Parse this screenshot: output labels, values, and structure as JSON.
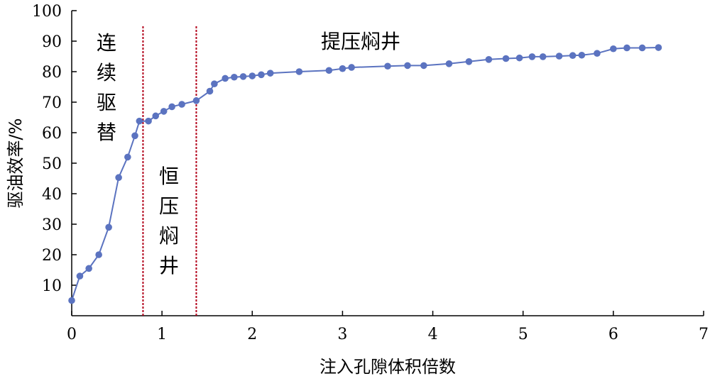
{
  "chart_data": {
    "type": "line",
    "xlabel": "注入孔隙体积倍数",
    "ylabel": "驱油效率/%",
    "xlim": [
      0,
      7
    ],
    "ylim": [
      0,
      100
    ],
    "x_ticks": [
      "0",
      "1",
      "2",
      "3",
      "4",
      "5",
      "6",
      "7"
    ],
    "y_ticks": [
      "10",
      "20",
      "30",
      "40",
      "50",
      "60",
      "70",
      "80",
      "90",
      "100"
    ],
    "grid": false,
    "colors": {
      "series": "#5B73C0",
      "divider": "#B3001B"
    },
    "series": [
      {
        "marker": "circle",
        "points": [
          [
            0.0,
            5.0
          ],
          [
            0.09,
            13.0
          ],
          [
            0.19,
            15.5
          ],
          [
            0.3,
            20.0
          ],
          [
            0.41,
            29.0
          ],
          [
            0.52,
            45.3
          ],
          [
            0.62,
            52.0
          ],
          [
            0.7,
            59.0
          ],
          [
            0.75,
            63.8
          ],
          [
            0.85,
            63.8
          ],
          [
            0.93,
            65.5
          ],
          [
            1.02,
            67.0
          ],
          [
            1.11,
            68.5
          ],
          [
            1.22,
            69.3
          ],
          [
            1.38,
            70.5
          ],
          [
            1.53,
            73.6
          ],
          [
            1.58,
            76.0
          ],
          [
            1.7,
            77.8
          ],
          [
            1.8,
            78.2
          ],
          [
            1.9,
            78.4
          ],
          [
            2.0,
            78.6
          ],
          [
            2.1,
            79.0
          ],
          [
            2.2,
            79.5
          ],
          [
            2.52,
            80.0
          ],
          [
            2.85,
            80.4
          ],
          [
            3.0,
            81.0
          ],
          [
            3.1,
            81.4
          ],
          [
            3.5,
            81.8
          ],
          [
            3.72,
            82.0
          ],
          [
            3.9,
            82.0
          ],
          [
            4.18,
            82.6
          ],
          [
            4.4,
            83.3
          ],
          [
            4.62,
            84.0
          ],
          [
            4.81,
            84.3
          ],
          [
            4.96,
            84.5
          ],
          [
            5.1,
            84.9
          ],
          [
            5.22,
            84.9
          ],
          [
            5.4,
            85.1
          ],
          [
            5.55,
            85.3
          ],
          [
            5.65,
            85.4
          ],
          [
            5.82,
            86.0
          ],
          [
            6.0,
            87.5
          ],
          [
            6.15,
            87.8
          ],
          [
            6.32,
            87.8
          ],
          [
            6.5,
            87.9
          ]
        ]
      }
    ],
    "dividers": [
      0.79,
      1.38
    ],
    "regions": [
      {
        "label": "连续驱替",
        "layout": "vertical"
      },
      {
        "label": "恒压焖井",
        "layout": "vertical"
      },
      {
        "label": "提压焖井",
        "layout": "horizontal"
      }
    ]
  }
}
